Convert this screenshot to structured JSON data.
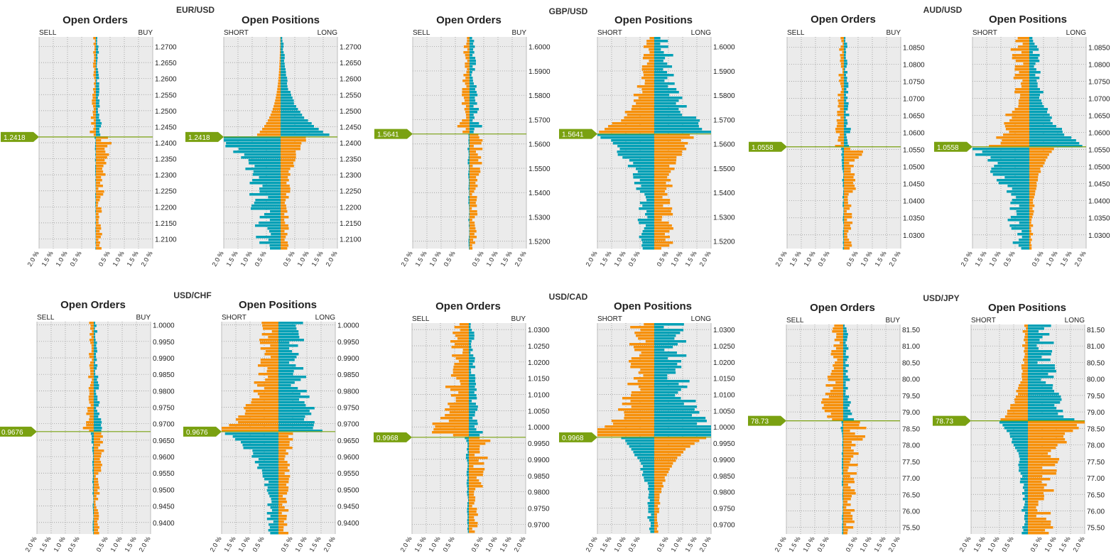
{
  "colors": {
    "orange": "#f7900a",
    "teal": "#00a0b6",
    "price": "#7aa111",
    "plot_bg": "#ebebeb",
    "grid": "#8c8c8c"
  },
  "x_ticks": [
    "2.0 %",
    "1.5 %",
    "1.0 %",
    "0.5 %",
    "0.5 %",
    "1.0 %",
    "1.5 %",
    "2.0 %"
  ],
  "side_labels": {
    "orders_left": "SELL",
    "orders_right": "BUY",
    "positions_left": "SHORT",
    "positions_right": "LONG"
  },
  "titles": {
    "orders": "Open Orders",
    "positions": "Open Positions"
  },
  "chart_data": [
    {
      "type": "bar",
      "pair": "EUR/USD",
      "current_price": "1.2418",
      "current_price_value": 1.2418,
      "ylim": [
        1.207,
        1.273
      ],
      "yticks": [
        "1.2100",
        "1.2150",
        "1.2200",
        "1.2250",
        "1.2300",
        "1.2350",
        "1.2400",
        "1.2450",
        "1.2500",
        "1.2550",
        "1.2600",
        "1.2650",
        "1.2700"
      ],
      "xlim": [
        -2.0,
        2.0
      ],
      "orders": {
        "orange_left": 0.15,
        "orange_right": 0.35,
        "teal_left": 0.05,
        "teal_right": 0.15,
        "seed": 11
      },
      "positions": {
        "below": {
          "orange": 0.25,
          "teal": 0.9
        },
        "above": {
          "orange": 0.0,
          "teal": 0.08
        },
        "peak_below_teal": 2.0,
        "peak_below_orange": 0.9,
        "peak_above_teal": 2.0,
        "peak_above_orange": 1.0,
        "seed": 12
      }
    },
    {
      "type": "bar",
      "pair": "GBP/USD",
      "current_price": "1.5641",
      "current_price_value": 1.5641,
      "ylim": [
        1.517,
        1.604
      ],
      "yticks": [
        "1.5200",
        "1.5300",
        "1.5400",
        "1.5500",
        "1.5600",
        "1.5700",
        "1.5800",
        "1.5900",
        "1.6000"
      ],
      "xlim": [
        -2.0,
        2.0
      ],
      "orders": {
        "orange_left": 0.3,
        "orange_right": 0.4,
        "teal_left": 0.1,
        "teal_right": 0.3,
        "seed": 21
      },
      "positions": {
        "below": {
          "orange": 0.6,
          "teal": 0.5
        },
        "above": {
          "orange": 0.35,
          "teal": 0.55
        },
        "peak_below_teal": 2.0,
        "peak_below_orange": 1.0,
        "peak_above_teal": 2.0,
        "peak_above_orange": 2.0,
        "seed": 22
      }
    },
    {
      "type": "bar",
      "pair": "AUD/USD",
      "current_price": "1.0558",
      "current_price_value": 1.0558,
      "ylim": [
        1.026,
        1.088
      ],
      "yticks": [
        "1.0300",
        "1.0350",
        "1.0400",
        "1.0450",
        "1.0500",
        "1.0550",
        "1.0600",
        "1.0650",
        "1.0700",
        "1.0750",
        "1.0800",
        "1.0850"
      ],
      "xlim": [
        -2.0,
        2.0
      ],
      "orders": {
        "orange_left": 0.25,
        "orange_right": 0.45,
        "teal_left": 0.1,
        "teal_right": 0.2,
        "seed": 31
      },
      "positions": {
        "below": {
          "orange": 0.1,
          "teal": 0.7
        },
        "above": {
          "orange": 0.6,
          "teal": 0.3
        },
        "peak_below_teal": 2.0,
        "peak_below_orange": 1.0,
        "peak_above_teal": 2.0,
        "peak_above_orange": 1.0,
        "seed": 32
      }
    },
    {
      "type": "bar",
      "pair": "USD/CHF",
      "current_price": "0.9676",
      "current_price_value": 0.9676,
      "ylim": [
        0.9365,
        1.001
      ],
      "yticks": [
        "0.9400",
        "0.9450",
        "0.9500",
        "0.9550",
        "0.9600",
        "0.9650",
        "0.9700",
        "0.9750",
        "0.9800",
        "0.9850",
        "0.9900",
        "0.9950",
        "1.0000"
      ],
      "xlim": [
        -2.0,
        2.0
      ],
      "orders": {
        "orange_left": 0.25,
        "orange_right": 0.3,
        "teal_left": 0.1,
        "teal_right": 0.2,
        "seed": 41
      },
      "positions": {
        "below": {
          "orange": 0.35,
          "teal": 0.35
        },
        "above": {
          "orange": 0.6,
          "teal": 0.8
        },
        "peak_below_teal": 2.0,
        "peak_below_orange": 0.3,
        "peak_above_teal": 1.2,
        "peak_above_orange": 2.0,
        "seed": 42
      }
    },
    {
      "type": "bar",
      "pair": "USD/CAD",
      "current_price": "0.9968",
      "current_price_value": 0.9968,
      "ylim": [
        0.967,
        1.032
      ],
      "yticks": [
        "0.9700",
        "0.9750",
        "0.9800",
        "0.9850",
        "0.9900",
        "0.9950",
        "1.0000",
        "1.0050",
        "1.0100",
        "1.0150",
        "1.0200",
        "1.0250",
        "1.0300"
      ],
      "xlim": [
        -2.0,
        2.0
      ],
      "orders": {
        "orange_left": 1.0,
        "orange_right": 0.55,
        "teal_left": 0.15,
        "teal_right": 0.3,
        "seed": 51
      },
      "positions": {
        "below": {
          "orange": 0.1,
          "teal": 0.2
        },
        "above": {
          "orange": 0.8,
          "teal": 1.0
        },
        "peak_below_teal": 1.2,
        "peak_below_orange": 2.0,
        "peak_above_teal": 2.0,
        "peak_above_orange": 2.0,
        "seed": 52
      }
    },
    {
      "type": "bar",
      "pair": "USD/JPY",
      "current_price": "78.73",
      "current_price_value": 78.73,
      "ylim": [
        75.3,
        81.65
      ],
      "yticks": [
        "75.50",
        "76.00",
        "76.50",
        "77.00",
        "77.50",
        "78.00",
        "78.50",
        "79.00",
        "79.50",
        "80.00",
        "80.50",
        "81.00",
        "81.50"
      ],
      "xlim": [
        -2.0,
        2.0
      ],
      "orders": {
        "orange_left": 0.6,
        "orange_right": 0.6,
        "teal_left": 0.1,
        "teal_right": 0.25,
        "seed": 61
      },
      "positions": {
        "below": {
          "orange": 0.8,
          "teal": 0.2
        },
        "above": {
          "orange": 0.15,
          "teal": 0.8
        },
        "peak_below_teal": 1.0,
        "peak_below_orange": 2.0,
        "peak_above_teal": 1.2,
        "peak_above_orange": 1.0,
        "seed": 62
      }
    }
  ]
}
